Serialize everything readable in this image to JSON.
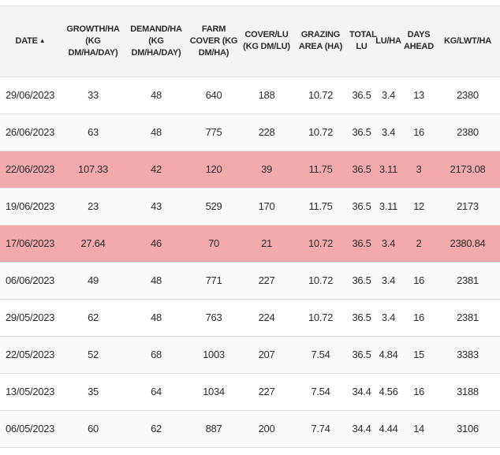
{
  "table": {
    "headers": [
      {
        "lines": [
          "DATE"
        ],
        "sort": "▲"
      },
      {
        "lines": [
          "GROWTH/HA",
          "(KG",
          "DM/HA/DAY)"
        ]
      },
      {
        "lines": [
          "DEMAND/HA",
          "(KG",
          "DM/HA/DAY)"
        ]
      },
      {
        "lines": [
          "FARM",
          "COVER (KG",
          "DM/HA)"
        ]
      },
      {
        "lines": [
          "COVER/LU",
          "(KG DM/LU)"
        ]
      },
      {
        "lines": [
          "GRAZING",
          "AREA (HA)"
        ]
      },
      {
        "lines": [
          "TOTAL",
          "LU"
        ]
      },
      {
        "lines": [
          "LU/HA"
        ]
      },
      {
        "lines": [
          "DAYS",
          "AHEAD"
        ]
      },
      {
        "lines": [
          "KG/LWT/HA"
        ]
      }
    ],
    "rows": [
      {
        "cells": [
          "29/06/2023",
          "33",
          "48",
          "640",
          "188",
          "10.72",
          "36.5",
          "3.4",
          "13",
          "2380"
        ],
        "highlight": false
      },
      {
        "cells": [
          "26/06/2023",
          "63",
          "48",
          "775",
          "228",
          "10.72",
          "36.5",
          "3.4",
          "16",
          "2380"
        ],
        "highlight": false
      },
      {
        "cells": [
          "22/06/2023",
          "107.33",
          "42",
          "120",
          "39",
          "11.75",
          "36.5",
          "3.11",
          "3",
          "2173.08"
        ],
        "highlight": true
      },
      {
        "cells": [
          "19/06/2023",
          "23",
          "43",
          "529",
          "170",
          "11.75",
          "36.5",
          "3.11",
          "12",
          "2173"
        ],
        "highlight": false
      },
      {
        "cells": [
          "17/06/2023",
          "27.64",
          "46",
          "70",
          "21",
          "10.72",
          "36.5",
          "3.4",
          "2",
          "2380.84"
        ],
        "highlight": true
      },
      {
        "cells": [
          "06/06/2023",
          "49",
          "48",
          "771",
          "227",
          "10.72",
          "36.5",
          "3.4",
          "16",
          "2381"
        ],
        "highlight": false
      },
      {
        "cells": [
          "29/05/2023",
          "62",
          "48",
          "763",
          "224",
          "10.72",
          "36.5",
          "3.4",
          "16",
          "2381"
        ],
        "highlight": false
      },
      {
        "cells": [
          "22/05/2023",
          "52",
          "68",
          "1003",
          "207",
          "7.54",
          "36.5",
          "4.84",
          "15",
          "3383"
        ],
        "highlight": false
      },
      {
        "cells": [
          "13/05/2023",
          "35",
          "64",
          "1034",
          "227",
          "7.54",
          "34.4",
          "4.56",
          "16",
          "3188"
        ],
        "highlight": false
      },
      {
        "cells": [
          "06/05/2023",
          "60",
          "62",
          "887",
          "200",
          "7.74",
          "34.4",
          "4.44",
          "14",
          "3106"
        ],
        "highlight": false
      }
    ]
  },
  "colors": {
    "highlight_row": "#f4a9aa",
    "header_bg": "#f4f4f4",
    "row_border": "#dedede"
  }
}
